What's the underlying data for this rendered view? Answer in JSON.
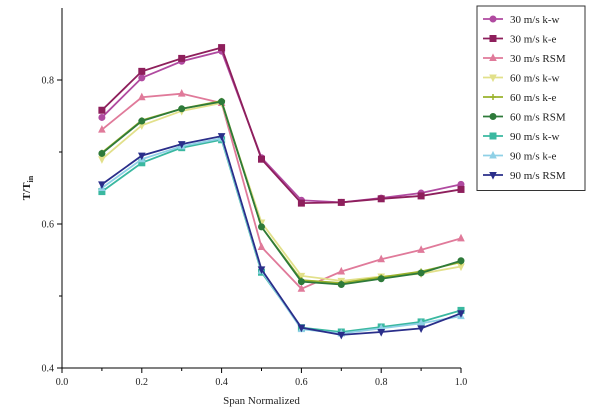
{
  "chart_data": {
    "type": "line",
    "xlabel": "Span Normalized",
    "ylabel": "T/T",
    "ylabel_sub": "in",
    "xlim": [
      0.0,
      1.0
    ],
    "ylim": [
      0.4,
      0.9
    ],
    "xticks": [
      "0.0",
      "0.2",
      "0.4",
      "0.6",
      "0.8",
      "1.0"
    ],
    "yticks": [
      "0.4",
      "0.6",
      "0.8"
    ],
    "grid": false,
    "legend_position": "top-right",
    "x": [
      0.1,
      0.2,
      0.3,
      0.4,
      0.5,
      0.6,
      0.7,
      0.8,
      0.9,
      1.0
    ],
    "series": [
      {
        "name": "30 m/s k-w",
        "color": "#b04aa0",
        "marker": "circle",
        "values": [
          0.748,
          0.803,
          0.826,
          0.84,
          0.692,
          0.633,
          0.63,
          0.636,
          0.643,
          0.655
        ]
      },
      {
        "name": "30 m/s k-e",
        "color": "#8e1f5c",
        "marker": "square",
        "values": [
          0.758,
          0.812,
          0.83,
          0.845,
          0.69,
          0.629,
          0.63,
          0.635,
          0.639,
          0.648
        ]
      },
      {
        "name": "30 m/s RSM",
        "color": "#e07a9a",
        "marker": "triangle",
        "values": [
          0.731,
          0.776,
          0.781,
          0.768,
          0.568,
          0.51,
          0.534,
          0.551,
          0.564,
          0.58
        ]
      },
      {
        "name": "60 m/s k-w",
        "color": "#e2e08a",
        "marker": "triangle-down",
        "values": [
          0.69,
          0.737,
          0.757,
          0.768,
          0.602,
          0.528,
          0.521,
          0.527,
          0.531,
          0.541
        ]
      },
      {
        "name": "60 m/s k-e",
        "color": "#9ab22c",
        "marker": "cross",
        "values": [
          0.699,
          0.744,
          0.76,
          0.771,
          0.596,
          0.522,
          0.518,
          0.526,
          0.534,
          0.547
        ]
      },
      {
        "name": "60 m/s RSM",
        "color": "#2e7a3a",
        "marker": "circle",
        "values": [
          0.698,
          0.743,
          0.76,
          0.77,
          0.596,
          0.52,
          0.516,
          0.524,
          0.532,
          0.549
        ]
      },
      {
        "name": "90 m/s k-w",
        "color": "#3ab8a0",
        "marker": "square",
        "values": [
          0.645,
          0.685,
          0.706,
          0.717,
          0.533,
          0.456,
          0.45,
          0.457,
          0.464,
          0.48
        ]
      },
      {
        "name": "90 m/s k-e",
        "color": "#8fd0e6",
        "marker": "triangle",
        "values": [
          0.65,
          0.69,
          0.708,
          0.719,
          0.535,
          0.454,
          0.448,
          0.455,
          0.462,
          0.472
        ]
      },
      {
        "name": "90 m/s RSM",
        "color": "#2a2e8a",
        "marker": "triangle-down",
        "values": [
          0.655,
          0.695,
          0.711,
          0.722,
          0.537,
          0.456,
          0.446,
          0.45,
          0.455,
          0.476
        ]
      }
    ]
  }
}
